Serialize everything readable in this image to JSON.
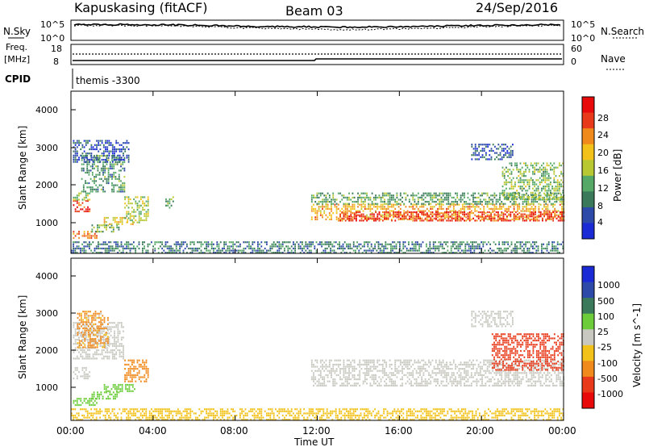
{
  "header": {
    "site": "Kapuskasing (fitACF)",
    "beam": "Beam 03",
    "date": "24/Sep/2016"
  },
  "top_panel": {
    "left_label": "N.Sky",
    "left_ticks": [
      "10^5",
      "10^0"
    ],
    "right_ticks": [
      "10^5",
      "10^0"
    ],
    "right_label": "N.Search"
  },
  "freq_panel": {
    "left_label_1": "Freq.",
    "left_label_2": "[MHz]",
    "left_ticks": [
      "18",
      "8"
    ],
    "right_ticks": [
      "60",
      "0"
    ],
    "right_label": "Nave"
  },
  "cpid": {
    "label": "CPID",
    "value": "themis -3300"
  },
  "x_axis": {
    "label": "Time UT",
    "ticks": [
      "00:00",
      "04:00",
      "08:00",
      "12:00",
      "16:00",
      "20:00",
      "00:00"
    ]
  },
  "colors": {
    "power": [
      "#1a2bd6",
      "#2e4aa8",
      "#3a7a5a",
      "#55a866",
      "#b8c832",
      "#f2c21a",
      "#f08a1c",
      "#e83a1a",
      "#e80a0a"
    ],
    "velocity": [
      "#1a2bd6",
      "#2e4aa8",
      "#3a7a5a",
      "#6ccc3a",
      "#c8c8c0",
      "#f2c21a",
      "#f08a1c",
      "#e83a1a",
      "#e80a0a"
    ]
  },
  "chart_data": [
    {
      "type": "heatmap",
      "title": "",
      "xlabel": "",
      "ylabel": "Slant Range [km]",
      "x_ticks": [
        "00:00",
        "04:00",
        "08:00",
        "12:00",
        "16:00",
        "20:00",
        "00:00"
      ],
      "y_ticks": [
        "1000",
        "2000",
        "3000",
        "4000"
      ],
      "xlim_hours": [
        0,
        24
      ],
      "ylim_km": [
        180,
        4500
      ],
      "colorbar": {
        "label": "Power [dB]",
        "ticks": [
          "4",
          "8",
          "12",
          "16",
          "20",
          "24",
          "28"
        ],
        "range": [
          0,
          30
        ]
      },
      "regions": [
        {
          "t": [
            0.1,
            1.3
          ],
          "r": [
            600,
            780
          ],
          "value": 22
        },
        {
          "t": [
            1.0,
            2.3
          ],
          "r": [
            780,
            950
          ],
          "value": 12
        },
        {
          "t": [
            1.6,
            3.1
          ],
          "r": [
            950,
            1150
          ],
          "value": 18
        },
        {
          "t": [
            0.1,
            0.9
          ],
          "r": [
            1300,
            1600
          ],
          "value": 26
        },
        {
          "t": [
            0.1,
            0.9
          ],
          "r": [
            1600,
            1800
          ],
          "value": 14
        },
        {
          "t": [
            0.5,
            2.6
          ],
          "r": [
            1800,
            2800
          ],
          "value": 10
        },
        {
          "t": [
            0.1,
            2.8
          ],
          "r": [
            2600,
            3200
          ],
          "value": 5
        },
        {
          "t": [
            2.6,
            3.8
          ],
          "r": [
            1000,
            1700
          ],
          "value": 14
        },
        {
          "t": [
            4.6,
            5.0
          ],
          "r": [
            1400,
            1700
          ],
          "value": 12
        },
        {
          "t": [
            0.0,
            24.0
          ],
          "r": [
            200,
            500
          ],
          "value": 8
        },
        {
          "t": [
            11.7,
            24.0
          ],
          "r": [
            1100,
            1500
          ],
          "value": 20
        },
        {
          "t": [
            13.0,
            24.0
          ],
          "r": [
            1050,
            1300
          ],
          "value": 26
        },
        {
          "t": [
            11.7,
            24.0
          ],
          "r": [
            1500,
            1800
          ],
          "value": 11
        },
        {
          "t": [
            21.0,
            24.0
          ],
          "r": [
            1600,
            2600
          ],
          "value": 13
        },
        {
          "t": [
            19.5,
            21.5
          ],
          "r": [
            2700,
            3100
          ],
          "value": 5
        }
      ]
    },
    {
      "type": "heatmap",
      "title": "",
      "xlabel": "Time UT",
      "ylabel": "Slant Range [km]",
      "x_ticks": [
        "00:00",
        "04:00",
        "08:00",
        "12:00",
        "16:00",
        "20:00",
        "00:00"
      ],
      "y_ticks": [
        "1000",
        "2000",
        "3000",
        "4000"
      ],
      "xlim_hours": [
        0,
        24
      ],
      "ylim_km": [
        180,
        4500
      ],
      "colorbar": {
        "label": "Velocity [m s^-1]",
        "ticks": [
          "1000",
          "500",
          "100",
          "25",
          "-25",
          "-100",
          "-500",
          "-1000"
        ],
        "range": [
          -1000,
          1000
        ]
      },
      "regions": [
        {
          "t": [
            0.1,
            1.3
          ],
          "r": [
            600,
            780
          ],
          "value": 80
        },
        {
          "t": [
            1.0,
            2.3
          ],
          "r": [
            780,
            950
          ],
          "value": 80
        },
        {
          "t": [
            1.6,
            3.1
          ],
          "r": [
            950,
            1150
          ],
          "value": 80
        },
        {
          "t": [
            0.1,
            0.9
          ],
          "r": [
            1300,
            1600
          ],
          "value": 0
        },
        {
          "t": [
            0.1,
            2.6
          ],
          "r": [
            1800,
            2800
          ],
          "value": 0
        },
        {
          "t": [
            0.3,
            1.8
          ],
          "r": [
            2100,
            3100
          ],
          "value": -200
        },
        {
          "t": [
            2.6,
            3.8
          ],
          "r": [
            1200,
            1800
          ],
          "value": -300
        },
        {
          "t": [
            0.0,
            24.0
          ],
          "r": [
            200,
            500
          ],
          "value": -40
        },
        {
          "t": [
            11.7,
            24.0
          ],
          "r": [
            1100,
            1800
          ],
          "value": 0
        },
        {
          "t": [
            20.5,
            24.0
          ],
          "r": [
            1500,
            2500
          ],
          "value": -800
        },
        {
          "t": [
            19.5,
            21.5
          ],
          "r": [
            2700,
            3100
          ],
          "value": 0
        }
      ]
    }
  ]
}
